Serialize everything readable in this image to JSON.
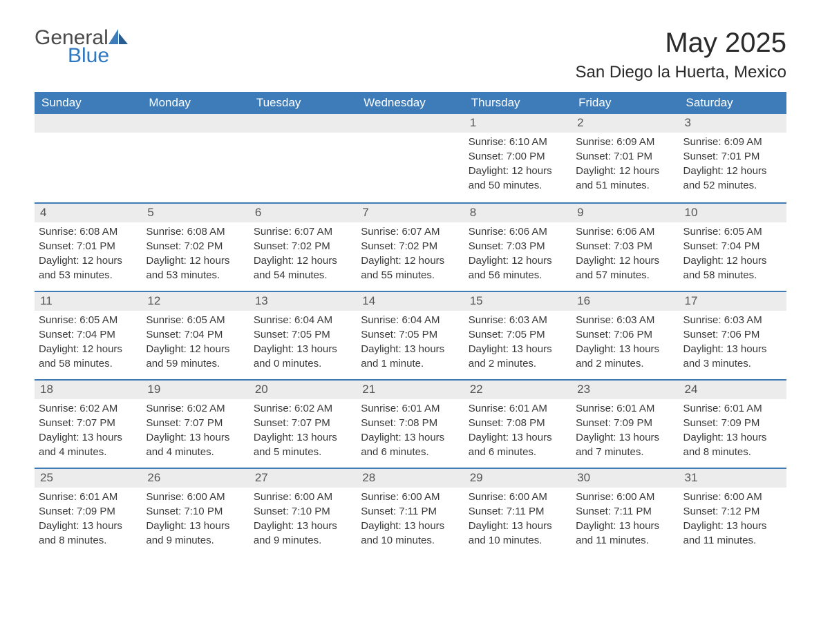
{
  "logo": {
    "general": "General",
    "blue": "Blue"
  },
  "title": "May 2025",
  "location": "San Diego la Huerta, Mexico",
  "colors": {
    "header_bg": "#3d7cb9",
    "header_text": "#ffffff",
    "daynum_bg": "#ececec",
    "border": "#3d7cb9",
    "text": "#3a3a3a",
    "logo_blue": "#2f78bf"
  },
  "day_headers": [
    "Sunday",
    "Monday",
    "Tuesday",
    "Wednesday",
    "Thursday",
    "Friday",
    "Saturday"
  ],
  "weeks": [
    [
      null,
      null,
      null,
      null,
      {
        "n": "1",
        "sunrise": "Sunrise: 6:10 AM",
        "sunset": "Sunset: 7:00 PM",
        "daylight": "Daylight: 12 hours and 50 minutes."
      },
      {
        "n": "2",
        "sunrise": "Sunrise: 6:09 AM",
        "sunset": "Sunset: 7:01 PM",
        "daylight": "Daylight: 12 hours and 51 minutes."
      },
      {
        "n": "3",
        "sunrise": "Sunrise: 6:09 AM",
        "sunset": "Sunset: 7:01 PM",
        "daylight": "Daylight: 12 hours and 52 minutes."
      }
    ],
    [
      {
        "n": "4",
        "sunrise": "Sunrise: 6:08 AM",
        "sunset": "Sunset: 7:01 PM",
        "daylight": "Daylight: 12 hours and 53 minutes."
      },
      {
        "n": "5",
        "sunrise": "Sunrise: 6:08 AM",
        "sunset": "Sunset: 7:02 PM",
        "daylight": "Daylight: 12 hours and 53 minutes."
      },
      {
        "n": "6",
        "sunrise": "Sunrise: 6:07 AM",
        "sunset": "Sunset: 7:02 PM",
        "daylight": "Daylight: 12 hours and 54 minutes."
      },
      {
        "n": "7",
        "sunrise": "Sunrise: 6:07 AM",
        "sunset": "Sunset: 7:02 PM",
        "daylight": "Daylight: 12 hours and 55 minutes."
      },
      {
        "n": "8",
        "sunrise": "Sunrise: 6:06 AM",
        "sunset": "Sunset: 7:03 PM",
        "daylight": "Daylight: 12 hours and 56 minutes."
      },
      {
        "n": "9",
        "sunrise": "Sunrise: 6:06 AM",
        "sunset": "Sunset: 7:03 PM",
        "daylight": "Daylight: 12 hours and 57 minutes."
      },
      {
        "n": "10",
        "sunrise": "Sunrise: 6:05 AM",
        "sunset": "Sunset: 7:04 PM",
        "daylight": "Daylight: 12 hours and 58 minutes."
      }
    ],
    [
      {
        "n": "11",
        "sunrise": "Sunrise: 6:05 AM",
        "sunset": "Sunset: 7:04 PM",
        "daylight": "Daylight: 12 hours and 58 minutes."
      },
      {
        "n": "12",
        "sunrise": "Sunrise: 6:05 AM",
        "sunset": "Sunset: 7:04 PM",
        "daylight": "Daylight: 12 hours and 59 minutes."
      },
      {
        "n": "13",
        "sunrise": "Sunrise: 6:04 AM",
        "sunset": "Sunset: 7:05 PM",
        "daylight": "Daylight: 13 hours and 0 minutes."
      },
      {
        "n": "14",
        "sunrise": "Sunrise: 6:04 AM",
        "sunset": "Sunset: 7:05 PM",
        "daylight": "Daylight: 13 hours and 1 minute."
      },
      {
        "n": "15",
        "sunrise": "Sunrise: 6:03 AM",
        "sunset": "Sunset: 7:05 PM",
        "daylight": "Daylight: 13 hours and 2 minutes."
      },
      {
        "n": "16",
        "sunrise": "Sunrise: 6:03 AM",
        "sunset": "Sunset: 7:06 PM",
        "daylight": "Daylight: 13 hours and 2 minutes."
      },
      {
        "n": "17",
        "sunrise": "Sunrise: 6:03 AM",
        "sunset": "Sunset: 7:06 PM",
        "daylight": "Daylight: 13 hours and 3 minutes."
      }
    ],
    [
      {
        "n": "18",
        "sunrise": "Sunrise: 6:02 AM",
        "sunset": "Sunset: 7:07 PM",
        "daylight": "Daylight: 13 hours and 4 minutes."
      },
      {
        "n": "19",
        "sunrise": "Sunrise: 6:02 AM",
        "sunset": "Sunset: 7:07 PM",
        "daylight": "Daylight: 13 hours and 4 minutes."
      },
      {
        "n": "20",
        "sunrise": "Sunrise: 6:02 AM",
        "sunset": "Sunset: 7:07 PM",
        "daylight": "Daylight: 13 hours and 5 minutes."
      },
      {
        "n": "21",
        "sunrise": "Sunrise: 6:01 AM",
        "sunset": "Sunset: 7:08 PM",
        "daylight": "Daylight: 13 hours and 6 minutes."
      },
      {
        "n": "22",
        "sunrise": "Sunrise: 6:01 AM",
        "sunset": "Sunset: 7:08 PM",
        "daylight": "Daylight: 13 hours and 6 minutes."
      },
      {
        "n": "23",
        "sunrise": "Sunrise: 6:01 AM",
        "sunset": "Sunset: 7:09 PM",
        "daylight": "Daylight: 13 hours and 7 minutes."
      },
      {
        "n": "24",
        "sunrise": "Sunrise: 6:01 AM",
        "sunset": "Sunset: 7:09 PM",
        "daylight": "Daylight: 13 hours and 8 minutes."
      }
    ],
    [
      {
        "n": "25",
        "sunrise": "Sunrise: 6:01 AM",
        "sunset": "Sunset: 7:09 PM",
        "daylight": "Daylight: 13 hours and 8 minutes."
      },
      {
        "n": "26",
        "sunrise": "Sunrise: 6:00 AM",
        "sunset": "Sunset: 7:10 PM",
        "daylight": "Daylight: 13 hours and 9 minutes."
      },
      {
        "n": "27",
        "sunrise": "Sunrise: 6:00 AM",
        "sunset": "Sunset: 7:10 PM",
        "daylight": "Daylight: 13 hours and 9 minutes."
      },
      {
        "n": "28",
        "sunrise": "Sunrise: 6:00 AM",
        "sunset": "Sunset: 7:11 PM",
        "daylight": "Daylight: 13 hours and 10 minutes."
      },
      {
        "n": "29",
        "sunrise": "Sunrise: 6:00 AM",
        "sunset": "Sunset: 7:11 PM",
        "daylight": "Daylight: 13 hours and 10 minutes."
      },
      {
        "n": "30",
        "sunrise": "Sunrise: 6:00 AM",
        "sunset": "Sunset: 7:11 PM",
        "daylight": "Daylight: 13 hours and 11 minutes."
      },
      {
        "n": "31",
        "sunrise": "Sunrise: 6:00 AM",
        "sunset": "Sunset: 7:12 PM",
        "daylight": "Daylight: 13 hours and 11 minutes."
      }
    ]
  ]
}
